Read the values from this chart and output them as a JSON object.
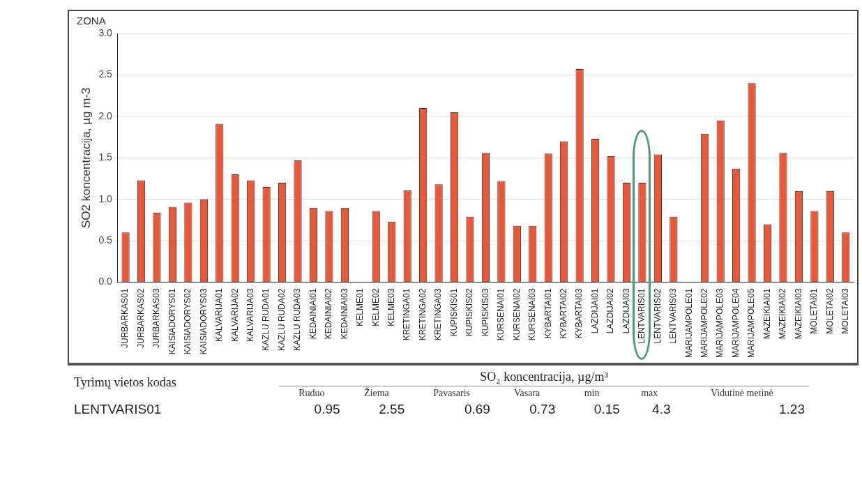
{
  "chart_data": [
    {
      "type": "bar",
      "title": "ZONA",
      "ylabel": "SO2 koncentracija, µg m-3",
      "categories": [
        "JURBARKAS01",
        "JURBARKAS02",
        "JURBARKAS03",
        "KAISIADORYS01",
        "KAISIADORYS02",
        "KAISIADORYS03",
        "KALVARIJA01",
        "KALVARIJA02",
        "KALVARIJA03",
        "KAZLU RUDA01",
        "KAZLU RUDA02",
        "KAZLU RUDA03",
        "KEDAINIAI01",
        "KEDAINIAI02",
        "KEDAINIAI03",
        "KELME01",
        "KELME02",
        "KELME03",
        "KRETINGA01",
        "KRETINGA02",
        "KRETINGA03",
        "KUPISKIS01",
        "KUPISKIS02",
        "KUPISKIS03",
        "KURSENAI01",
        "KURSENAI02",
        "KURSENAI03",
        "KYBARTAI01",
        "KYBARTAI02",
        "KYBARTAI03",
        "LAZDIJAI01",
        "LAZDIJAI02",
        "LAZDIJAI03",
        "LENTVARIS01",
        "LENTVARIS02",
        "LENTVARIS03",
        "MARIJAMPOLE01",
        "MARIJAMPOLE02",
        "MARIJAMPOLE03",
        "MARIJAMPOLE04",
        "MARIJAMPOLE05",
        "MAZEIKIAI01",
        "MAZEIKIAI02",
        "MAZEIKIAI03",
        "MOLETAI01",
        "MOLETAI02",
        "MOLETAI03"
      ],
      "values": [
        0.6,
        1.23,
        0.84,
        0.91,
        0.96,
        1.0,
        1.91,
        1.3,
        1.23,
        1.15,
        1.2,
        1.47,
        0.9,
        0.86,
        0.9,
        null,
        0.86,
        0.73,
        1.11,
        2.1,
        1.18,
        2.05,
        0.79,
        1.56,
        1.22,
        0.68,
        0.68,
        1.55,
        1.7,
        2.57,
        1.73,
        1.52,
        1.2,
        1.2,
        1.54,
        0.79,
        null,
        1.79,
        1.95,
        1.37,
        2.4,
        0.7,
        1.56,
        1.1,
        0.86,
        1.1,
        0.6
      ],
      "color": "#e8583a",
      "ylim": [
        0,
        3
      ],
      "yticks": [
        {
          "value": 0,
          "label": "0.0"
        },
        {
          "value": 0.5,
          "label": "0.5"
        },
        {
          "value": 1,
          "label": "1.0"
        },
        {
          "value": 1.5,
          "label": "1.5"
        },
        {
          "value": 2,
          "label": "2.0"
        },
        {
          "value": 2.5,
          "label": "2.5"
        },
        {
          "value": 3,
          "label": "3.0"
        }
      ],
      "grid": "y",
      "legend": false
    },
    {
      "type": "other",
      "title": "SO₂ koncentracija, µg/m³",
      "xlabel": "Tyrimų vietos kodas",
      "categories": [
        "Ruduo",
        "Žiema",
        "Pavasaris",
        "Vasara",
        "min",
        "max",
        "Vidutinė metinė"
      ],
      "y_categories": [
        "LENTVARIS01"
      ],
      "values": [
        0.95,
        2.55,
        0.69,
        0.73,
        0.15,
        4.3,
        1.23
      ],
      "data_labels": true
    }
  ]
}
